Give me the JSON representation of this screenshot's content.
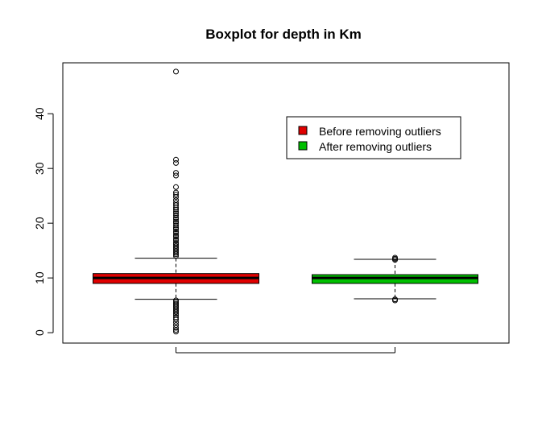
{
  "chart_data": {
    "type": "boxplot",
    "title": "Boxplot for depth in Km",
    "xlabel": "",
    "ylabel": "",
    "ylim": [
      -1.9,
      49.3
    ],
    "yticks": [
      0,
      10,
      20,
      30,
      40
    ],
    "legend": {
      "placement": "top-right",
      "entries": [
        {
          "label": "Before removing outliers",
          "color": "#e00000"
        },
        {
          "label": "After removing outliers",
          "color": "#00c000"
        }
      ]
    },
    "series": [
      {
        "name": "Before removing outliers",
        "color": "#e00000",
        "lower_whisker": 6.1,
        "q1": 9.0,
        "median": 10.0,
        "q3": 10.8,
        "upper_whisker": 13.6,
        "outliers": [
          47.7,
          31.6,
          31.0,
          29.2,
          28.7,
          26.6,
          25.6,
          25.2,
          24.8,
          24.2,
          23.7,
          23.3,
          22.9,
          22.5,
          22.1,
          21.8,
          21.4,
          21.0,
          20.7,
          20.3,
          20.0,
          19.6,
          19.2,
          18.9,
          18.5,
          18.2,
          17.8,
          17.5,
          17.1,
          16.8,
          16.4,
          16.1,
          15.8,
          15.5,
          15.2,
          14.9,
          14.6,
          14.3,
          14.0,
          5.9,
          5.6,
          5.3,
          5.0,
          4.7,
          4.4,
          4.1,
          3.8,
          3.5,
          3.2,
          2.8,
          2.4,
          1.9,
          1.4,
          0.9,
          0.5,
          0.2
        ]
      },
      {
        "name": "After removing outliers",
        "color": "#00c000",
        "lower_whisker": 6.2,
        "q1": 9.0,
        "median": 10.0,
        "q3": 10.6,
        "upper_whisker": 13.4,
        "outliers": [
          13.7,
          13.5,
          13.3,
          6.1,
          5.9
        ]
      }
    ]
  }
}
